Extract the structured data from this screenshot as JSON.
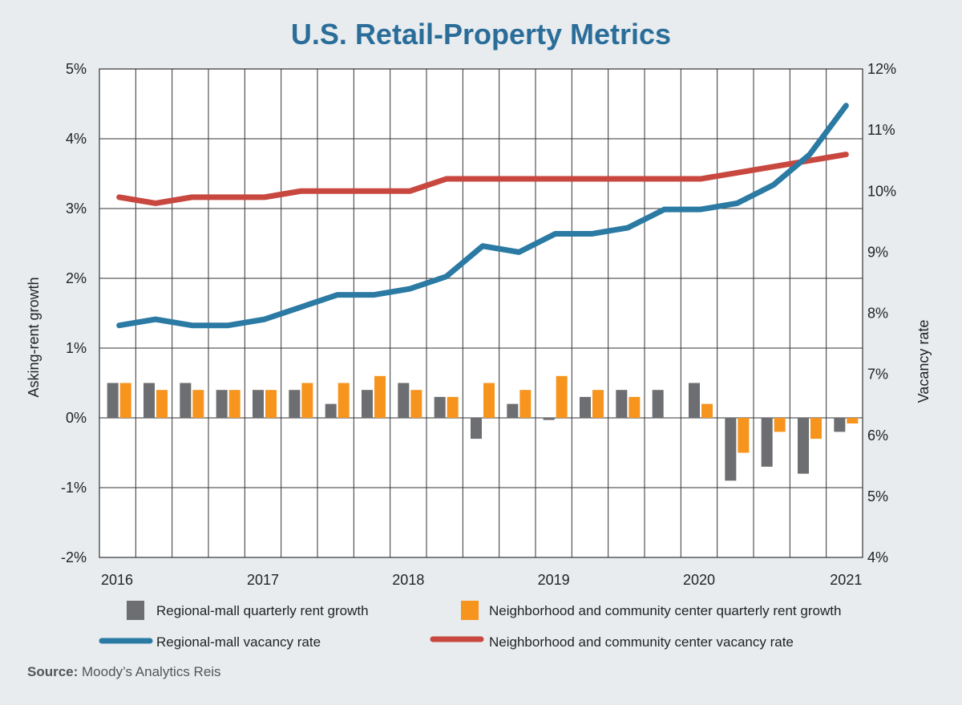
{
  "title": "U.S. Retail-Property Metrics",
  "source_label": "Source:",
  "source_text": " Moody’s Analytics Reis",
  "chart_data": {
    "type": "bar+line",
    "title": "U.S. Retail-Property Metrics",
    "ylabel_left": "Asking-rent growth",
    "ylabel_right": "Vacancy rate",
    "ylim_left": [
      -2,
      5
    ],
    "ylim_right": [
      4,
      12
    ],
    "yticks_left": [
      "5%",
      "4%",
      "3%",
      "2%",
      "1%",
      "0%",
      "-1%",
      "-2%"
    ],
    "yticks_left_values": [
      5,
      4,
      3,
      2,
      1,
      0,
      -1,
      -2
    ],
    "yticks_right": [
      "12%",
      "11%",
      "10%",
      "9%",
      "8%",
      "7%",
      "6%",
      "5%",
      "4%"
    ],
    "yticks_right_values": [
      12,
      11,
      10,
      9,
      8,
      7,
      6,
      5,
      4
    ],
    "x_tick_labels": [
      "2016",
      "2017",
      "2018",
      "2019",
      "2020",
      "2021"
    ],
    "quarters": [
      "2016 Q1",
      "2016 Q2",
      "2016 Q3",
      "2016 Q4",
      "2017 Q1",
      "2017 Q2",
      "2017 Q3",
      "2017 Q4",
      "2018 Q1",
      "2018 Q2",
      "2018 Q3",
      "2018 Q4",
      "2019 Q1",
      "2019 Q2",
      "2019 Q3",
      "2019 Q4",
      "2020 Q1",
      "2020 Q2",
      "2020 Q3",
      "2020 Q4",
      "2021 Q1"
    ],
    "grid": true,
    "legend_position": "bottom",
    "series": [
      {
        "name": "Regional-mall quarterly rent growth",
        "kind": "bar",
        "axis": "left",
        "color": "#6d6e71",
        "values": [
          0.5,
          0.5,
          0.5,
          0.4,
          0.4,
          0.4,
          0.2,
          0.4,
          0.5,
          0.3,
          -0.3,
          0.2,
          -0.03,
          0.3,
          0.4,
          0.4,
          0.5,
          -0.9,
          -0.7,
          -0.8,
          -0.2
        ]
      },
      {
        "name": "Neighborhood and community center quarterly rent growth",
        "kind": "bar",
        "axis": "left",
        "color": "#f7941d",
        "values": [
          0.5,
          0.4,
          0.4,
          0.4,
          0.4,
          0.5,
          0.5,
          0.6,
          0.4,
          0.3,
          0.5,
          0.4,
          0.6,
          0.4,
          0.3,
          0.0,
          0.2,
          -0.5,
          -0.2,
          -0.3,
          -0.08
        ]
      },
      {
        "name": "Regional-mall vacancy rate",
        "kind": "line",
        "axis": "right",
        "color": "#2a7aa3",
        "values": [
          7.8,
          7.9,
          7.8,
          7.8,
          7.9,
          8.1,
          8.3,
          8.3,
          8.4,
          8.6,
          9.1,
          9.0,
          9.3,
          9.3,
          9.4,
          9.7,
          9.7,
          9.8,
          10.1,
          10.6,
          11.4
        ]
      },
      {
        "name": "Neighborhood and community center vacancy rate",
        "kind": "line",
        "axis": "right",
        "color": "#c8473e",
        "values": [
          9.9,
          9.8,
          9.9,
          9.9,
          9.9,
          10.0,
          10.0,
          10.0,
          10.0,
          10.2,
          10.2,
          10.2,
          10.2,
          10.2,
          10.2,
          10.2,
          10.2,
          10.3,
          10.4,
          10.5,
          10.6
        ]
      }
    ]
  }
}
